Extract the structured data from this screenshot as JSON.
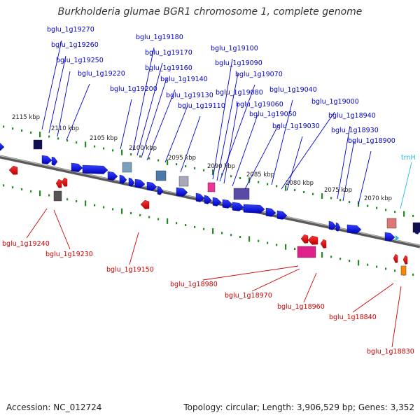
{
  "title": "Burkholderia glumae BGR1 chromosome 1, complete genome",
  "footer": {
    "accession": "Accession: NC_012724",
    "summary": "Topology: circular; Length: 3,906,529 bp; Genes: 3,352"
  },
  "colors": {
    "plus_strand": "#0000ee",
    "minus_strand": "#ee0000",
    "trna": "#22bbdd",
    "scale_ticks": "#228b22",
    "backbone": "#808080"
  },
  "scale_labels": [
    "2115 kbp",
    "2110 kbp",
    "2105 kbp",
    "2100 kbp",
    "2095 kbp",
    "2090 kbp",
    "2085 kbp",
    "2080 kbp",
    "2075 kbp",
    "2070 kbp"
  ],
  "top_labels": [
    "bglu_1g19270",
    "bglu_1g19260",
    "bglu_1g19250",
    "bglu_1g19220",
    "bglu_1g19180",
    "bglu_1g19170",
    "bglu_1g19160",
    "bglu_1g19140",
    "bglu_1g19200",
    "bglu_1g19130",
    "bglu_1g19110",
    "bglu_1g19100",
    "bglu_1g19090",
    "bglu_1g19070",
    "bglu_1g19080",
    "bglu_1g19060",
    "bglu_1g19050",
    "bglu_1g19040",
    "bglu_1g19000",
    "bglu_1g19030",
    "bglu_1g18940",
    "bglu_1g18930",
    "bglu_1g18900"
  ],
  "trna_label": "trnH",
  "bottom_labels": [
    "bglu_1g19240",
    "bglu_1g19230",
    "bglu_1g19150",
    "bglu_1g18980",
    "bglu_1g18970",
    "bglu_1g18960",
    "bglu_1g18840",
    "bglu_1g18830"
  ]
}
